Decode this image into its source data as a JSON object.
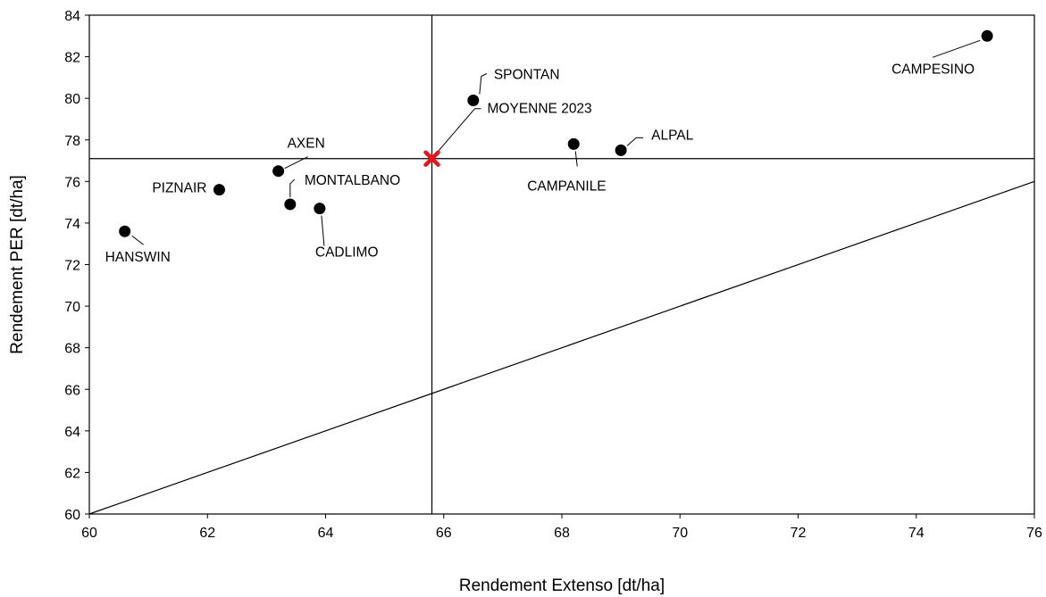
{
  "chart_data": {
    "type": "scatter",
    "xlabel": "Rendement Extenso [dt/ha]",
    "ylabel": "Rendement PER [dt/ha]",
    "xlim": [
      60,
      76
    ],
    "ylim": [
      60,
      84
    ],
    "x_ticks": [
      "60",
      "62",
      "64",
      "66",
      "68",
      "70",
      "72",
      "74",
      "76"
    ],
    "y_ticks": [
      "60",
      "62",
      "64",
      "66",
      "68",
      "70",
      "72",
      "74",
      "76",
      "78",
      "80",
      "82",
      "84"
    ],
    "grid": false,
    "points": [
      {
        "label": "HANSWIN",
        "x": 60.6,
        "y": 73.6
      },
      {
        "label": "PIZNAIR",
        "x": 62.2,
        "y": 75.6
      },
      {
        "label": "AXEN",
        "x": 63.2,
        "y": 76.5
      },
      {
        "label": "MONTALBANO",
        "x": 63.4,
        "y": 74.9
      },
      {
        "label": "CADLIMO",
        "x": 63.9,
        "y": 74.7
      },
      {
        "label": "SPONTAN",
        "x": 66.5,
        "y": 79.9
      },
      {
        "label": "CAMPANILE",
        "x": 68.2,
        "y": 77.8
      },
      {
        "label": "ALPAL",
        "x": 69.0,
        "y": 77.5
      },
      {
        "label": "CAMPESINO",
        "x": 75.2,
        "y": 83.0
      }
    ],
    "average": {
      "label": "MOYENNE 2023",
      "x": 65.8,
      "y": 77.1,
      "marker": "x",
      "color": "#e8141c"
    },
    "reference_lines": [
      {
        "type": "vertical",
        "x": 65.8
      },
      {
        "type": "horizontal",
        "y": 77.1
      },
      {
        "type": "diagonal",
        "from": [
          60,
          60
        ],
        "to": [
          76,
          76
        ]
      }
    ]
  }
}
